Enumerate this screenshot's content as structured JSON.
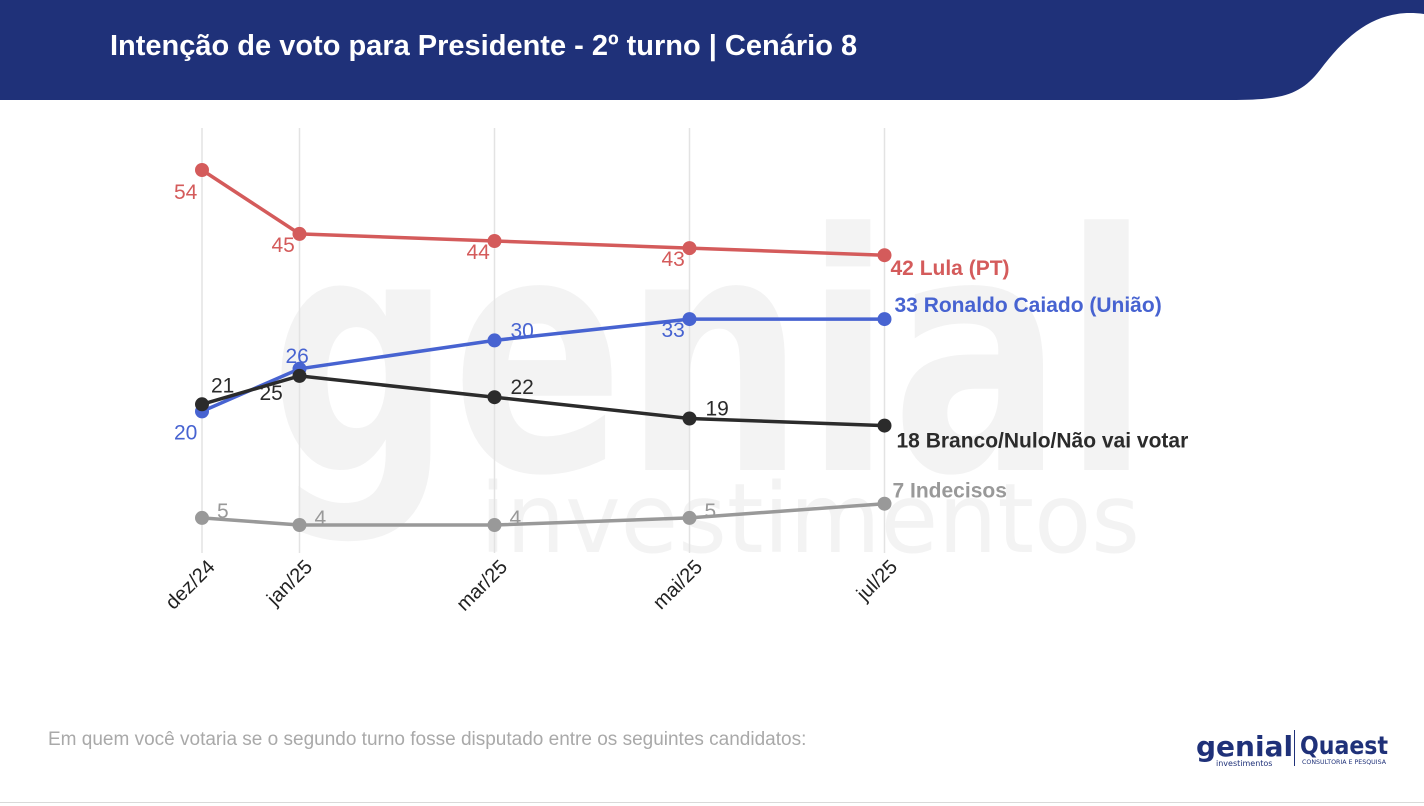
{
  "header": {
    "title": "Intenção de voto para Presidente - 2º turno | Cenário 8",
    "color": "#1f3179"
  },
  "chart_data": {
    "type": "line",
    "x": [
      "dez/24",
      "jan/25",
      "mar/25",
      "mai/25",
      "jul/25"
    ],
    "x_months": [
      0,
      1,
      3,
      5,
      7
    ],
    "ylim": [
      0,
      60
    ],
    "grid": "vertical",
    "series": [
      {
        "name": "Lula (PT)",
        "color": "#d45b5b",
        "values": [
          54,
          45,
          44,
          43,
          42
        ],
        "end_label": "42 Lula (PT)",
        "value_labels": [
          "54",
          "45",
          "44",
          "43"
        ]
      },
      {
        "name": "Ronaldo Caiado (União)",
        "color": "#4763d1",
        "values": [
          20,
          26,
          30,
          33,
          33
        ],
        "end_label": "33 Ronaldo Caiado (União)",
        "value_labels": [
          "20",
          "26",
          "30",
          "33"
        ]
      },
      {
        "name": "Branco/Nulo/Não vai votar",
        "color": "#2b2b2b",
        "values": [
          21,
          25,
          22,
          19,
          18
        ],
        "end_label": "18 Branco/Nulo/Não vai votar",
        "value_labels": [
          "21",
          "25",
          "22",
          "19"
        ]
      },
      {
        "name": "Indecisos",
        "color": "#999999",
        "values": [
          5,
          4,
          4,
          5,
          7
        ],
        "end_label": "7 Indecisos",
        "value_labels": [
          "5",
          "4",
          "4",
          "5"
        ]
      }
    ]
  },
  "watermark": {
    "main": "genial",
    "sub": "investimentos"
  },
  "footnote": "Em quem você votaria se o segundo turno fosse disputado entre os seguintes candidatos:",
  "logos": {
    "genial": "genial",
    "genial_sub": "investimentos",
    "quaest": "Quaest",
    "quaest_sub": "CONSULTORIA E PESQUISA"
  }
}
